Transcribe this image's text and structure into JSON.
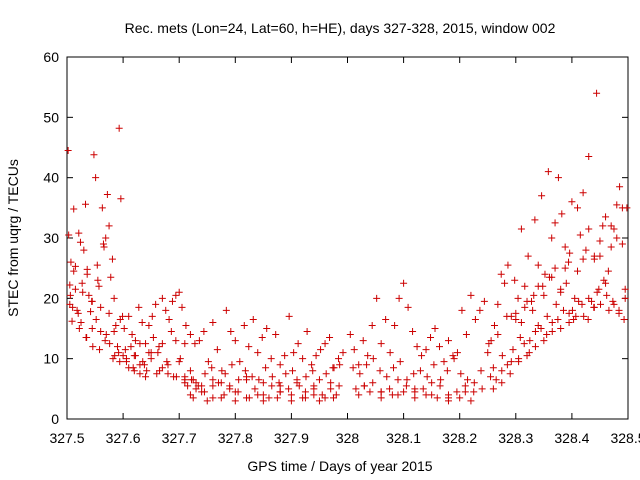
{
  "chart_data": {
    "type": "scatter",
    "title": "Rec. mets (Lon=24, Lat=60, h=HE), days 327-328, 2015, window 002",
    "xlabel": "GPS time / Days of year 2015",
    "ylabel": "STEC from uqrg / TECUs",
    "xlim": [
      327.5,
      328.5
    ],
    "ylim": [
      0,
      60
    ],
    "x_ticks": [
      327.5,
      327.6,
      327.7,
      327.8,
      327.9,
      328.0,
      328.1,
      328.2,
      328.3,
      328.4,
      328.5
    ],
    "x_tick_labels": [
      "327.5",
      "327.6",
      "327.7",
      "327.8",
      "327.9",
      "328",
      "328.1",
      "328.2",
      "328.3",
      "328.4",
      "328.5"
    ],
    "y_ticks": [
      0,
      10,
      20,
      30,
      40,
      50,
      60
    ],
    "y_tick_labels": [
      "0",
      "10",
      "20",
      "30",
      "40",
      "50",
      "60"
    ],
    "grid": false,
    "marker": "+",
    "color": "#cc0000",
    "series": [
      {
        "x": [
          327.502,
          327.503,
          327.505,
          327.507,
          327.509,
          327.512,
          327.515,
          327.518,
          327.521,
          327.524,
          327.527,
          327.53,
          327.533,
          327.536,
          327.539,
          327.542,
          327.545,
          327.548,
          327.551,
          327.554,
          327.557,
          327.56,
          327.563,
          327.566,
          327.569,
          327.572,
          327.575,
          327.578,
          327.581,
          327.584,
          327.587,
          327.59,
          327.593,
          327.596,
          327.599,
          327.602,
          327.506,
          327.512,
          327.52,
          327.528,
          327.536,
          327.544,
          327.552,
          327.56,
          327.568,
          327.576,
          327.584,
          327.592,
          327.6,
          327.51,
          327.522,
          327.534,
          327.546,
          327.558,
          327.57,
          327.582,
          327.594,
          327.606,
          327.618,
          327.63,
          327.642,
          327.505,
          327.515,
          327.525,
          327.535,
          327.545,
          327.555,
          327.565,
          327.575,
          327.585,
          327.595,
          327.604,
          327.61,
          327.616,
          327.622,
          327.628,
          327.634,
          327.64,
          327.646,
          327.652,
          327.658,
          327.664,
          327.67,
          327.676,
          327.682,
          327.688,
          327.694,
          327.7,
          327.606,
          327.614,
          327.622,
          327.63,
          327.638,
          327.646,
          327.654,
          327.662,
          327.67,
          327.678,
          327.686,
          327.694,
          327.702,
          327.71,
          327.61,
          327.62,
          327.63,
          327.64,
          327.65,
          327.66,
          327.67,
          327.68,
          327.69,
          327.7,
          327.71,
          327.72,
          327.62,
          327.635,
          327.65,
          327.665,
          327.68,
          327.695,
          327.71,
          327.725,
          327.74,
          327.705,
          327.712,
          327.72,
          327.728,
          327.736,
          327.744,
          327.752,
          327.76,
          327.768,
          327.776,
          327.784,
          327.792,
          327.8,
          327.808,
          327.816,
          327.824,
          327.832,
          327.84,
          327.848,
          327.856,
          327.864,
          327.872,
          327.88,
          327.888,
          327.896,
          327.904,
          327.912,
          327.92,
          327.928,
          327.936,
          327.944,
          327.952,
          327.96,
          327.968,
          327.976,
          327.984,
          327.992,
          327.71,
          327.722,
          327.734,
          327.746,
          327.758,
          327.77,
          327.782,
          327.794,
          327.806,
          327.818,
          327.83,
          327.842,
          327.854,
          327.866,
          327.878,
          327.89,
          327.902,
          327.914,
          327.926,
          327.938,
          327.95,
          327.962,
          327.974,
          327.986,
          327.715,
          327.73,
          327.745,
          327.76,
          327.775,
          327.79,
          327.805,
          327.82,
          327.835,
          327.85,
          327.865,
          327.88,
          327.895,
          327.91,
          327.925,
          327.94,
          327.955,
          327.97,
          327.985,
          327.72,
          327.74,
          327.76,
          327.78,
          327.8,
          327.82,
          327.84,
          327.86,
          327.88,
          327.9,
          327.92,
          327.94,
          327.96,
          327.98,
          327.725,
          327.75,
          327.775,
          327.8,
          327.825,
          327.85,
          327.875,
          327.9,
          327.925,
          327.95,
          327.975,
          327.73,
          327.76,
          327.79,
          327.82,
          327.85,
          327.88,
          327.91,
          327.94,
          327.97,
          328.005,
          328.012,
          328.02,
          328.028,
          328.036,
          328.044,
          328.052,
          328.06,
          328.068,
          328.076,
          328.084,
          328.092,
          328.1,
          328.108,
          328.116,
          328.124,
          328.132,
          328.14,
          328.148,
          328.156,
          328.164,
          328.172,
          328.18,
          328.188,
          328.196,
          328.204,
          328.212,
          328.22,
          328.228,
          328.236,
          328.244,
          328.01,
          328.022,
          328.034,
          328.046,
          328.058,
          328.07,
          328.082,
          328.094,
          328.106,
          328.118,
          328.13,
          328.142,
          328.154,
          328.166,
          328.178,
          328.19,
          328.202,
          328.214,
          328.226,
          328.238,
          328.015,
          328.03,
          328.045,
          328.06,
          328.075,
          328.09,
          328.105,
          328.12,
          328.135,
          328.15,
          328.165,
          328.18,
          328.195,
          328.21,
          328.225,
          328.24,
          328.02,
          328.04,
          328.06,
          328.08,
          328.1,
          328.12,
          328.14,
          328.16,
          328.18,
          328.2,
          328.22,
          328.03,
          328.06,
          328.09,
          328.12,
          328.15,
          328.18,
          328.21,
          328.25,
          328.256,
          328.262,
          328.268,
          328.274,
          328.28,
          328.286,
          328.292,
          328.298,
          328.304,
          328.31,
          328.316,
          328.322,
          328.328,
          328.334,
          328.34,
          328.346,
          328.352,
          328.358,
          328.364,
          328.37,
          328.376,
          328.382,
          328.388,
          328.394,
          328.4,
          328.252,
          328.26,
          328.268,
          328.276,
          328.284,
          328.292,
          328.3,
          328.308,
          328.316,
          328.324,
          328.332,
          328.34,
          328.348,
          328.356,
          328.364,
          328.372,
          328.38,
          328.388,
          328.396,
          328.255,
          328.265,
          328.275,
          328.285,
          328.295,
          328.305,
          328.315,
          328.325,
          328.335,
          328.345,
          328.355,
          328.365,
          328.375,
          328.385,
          328.395,
          328.26,
          328.275,
          328.29,
          328.305,
          328.32,
          328.335,
          328.35,
          328.365,
          328.38,
          328.395,
          328.401,
          328.405,
          328.41,
          328.415,
          328.42,
          328.425,
          328.43,
          328.435,
          328.44,
          328.445,
          328.45,
          328.455,
          328.46,
          328.465,
          328.47,
          328.475,
          328.48,
          328.485,
          328.49,
          328.495,
          328.498,
          328.403,
          328.412,
          328.421,
          328.43,
          328.439,
          328.448,
          328.457,
          328.466,
          328.475,
          328.484,
          328.493,
          328.407,
          328.418,
          328.429,
          328.44,
          328.451,
          328.462,
          328.473,
          328.484,
          328.495,
          328.3,
          328.31,
          328.32,
          328.33,
          328.34,
          328.35,
          328.36,
          328.37,
          328.38,
          328.39,
          328.41,
          328.42,
          328.43,
          328.44,
          328.45,
          328.46,
          328.47,
          328.48,
          328.49,
          328.444
        ],
        "y": [
          44.5,
          30.5,
          22.2,
          26.0,
          16.2,
          34.8,
          25.3,
          18.0,
          30.8,
          29.3,
          22.5,
          28.0,
          35.6,
          24.8,
          20.5,
          17.8,
          15.0,
          43.8,
          40.0,
          25.5,
          22.0,
          14.5,
          35.0,
          28.5,
          30.0,
          37.2,
          32.0,
          23.5,
          26.5,
          20.0,
          15.5,
          12.0,
          48.2,
          36.5,
          17.0,
          15.0,
          20.5,
          24.5,
          17.5,
          21.0,
          24.0,
          19.5,
          16.5,
          18.5,
          13.0,
          12.5,
          14.5,
          11.0,
          10.5,
          18.5,
          15.0,
          13.5,
          12.0,
          11.5,
          14.0,
          10.0,
          9.5,
          10.0,
          8.5,
          9.0,
          8.0,
          19.0,
          21.5,
          16.0,
          13.5,
          19.5,
          23.0,
          29.0,
          17.5,
          10.5,
          16.5,
          11.5,
          17.0,
          14.0,
          13.0,
          18.5,
          16.0,
          12.5,
          15.5,
          17.0,
          19.0,
          12.0,
          20.0,
          18.0,
          16.5,
          19.5,
          20.5,
          21.0,
          9.5,
          12.0,
          10.5,
          12.5,
          9.0,
          11.0,
          13.5,
          11.0,
          12.5,
          9.5,
          14.5,
          13.0,
          10.0,
          12.5,
          8.5,
          8.0,
          7.5,
          7.0,
          10.0,
          7.5,
          8.5,
          9.0,
          7.0,
          9.5,
          6.5,
          8.0,
          10.5,
          9.5,
          11.0,
          8.0,
          7.5,
          7.0,
          6.0,
          6.5,
          5.5,
          18.5,
          15.5,
          14.0,
          12.5,
          13.0,
          14.5,
          9.5,
          16.0,
          11.5,
          8.0,
          18.0,
          14.5,
          13.0,
          9.5,
          15.5,
          12.0,
          16.5,
          11.0,
          13.5,
          15.0,
          10.0,
          14.0,
          9.0,
          10.5,
          17.0,
          11.0,
          12.5,
          10.0,
          14.5,
          9.0,
          10.5,
          11.5,
          12.5,
          13.5,
          8.5,
          10.0,
          11.0,
          7.0,
          6.5,
          5.5,
          7.5,
          8.5,
          6.0,
          7.5,
          9.0,
          6.5,
          8.0,
          7.0,
          6.5,
          8.5,
          7.0,
          6.0,
          7.5,
          8.0,
          5.5,
          7.0,
          8.0,
          6.5,
          7.5,
          8.5,
          9.0,
          5.5,
          5.0,
          4.5,
          5.5,
          6.0,
          5.0,
          4.5,
          6.5,
          5.0,
          4.0,
          5.5,
          4.5,
          5.0,
          6.0,
          4.5,
          5.5,
          4.0,
          5.0,
          5.5,
          4.0,
          4.5,
          3.5,
          4.0,
          4.5,
          3.5,
          4.0,
          3.5,
          4.5,
          4.0,
          3.5,
          4.0,
          3.5,
          4.0,
          3.5,
          3.0,
          3.5,
          3.0,
          3.5,
          3.0,
          3.5,
          3.0,
          3.5,
          3.0,
          3.5,
          6.0,
          6.5,
          5.5,
          7.0,
          6.0,
          5.5,
          6.5,
          5.0,
          6.0,
          14.0,
          11.5,
          9.0,
          13.0,
          10.5,
          15.5,
          20.0,
          12.5,
          16.5,
          11.0,
          15.5,
          20.0,
          22.5,
          18.5,
          14.5,
          12.0,
          10.5,
          11.5,
          13.5,
          15.0,
          12.0,
          9.5,
          13.0,
          10.5,
          11.0,
          18.0,
          14.0,
          20.5,
          16.5,
          18.0,
          19.5,
          8.5,
          7.5,
          9.0,
          10.0,
          8.0,
          7.0,
          8.5,
          9.5,
          6.5,
          7.5,
          8.0,
          7.0,
          9.0,
          6.5,
          8.0,
          10.0,
          7.5,
          6.5,
          6.0,
          8.0,
          5.0,
          5.5,
          6.0,
          4.5,
          5.0,
          6.5,
          5.5,
          4.5,
          5.0,
          6.0,
          5.5,
          4.0,
          4.5,
          5.5,
          4.5,
          5.0,
          4.0,
          4.5,
          3.5,
          4.0,
          4.5,
          3.5,
          4.0,
          3.5,
          3.0,
          3.5,
          3.0,
          5.5,
          4.5,
          4.0,
          5.0,
          4.0,
          3.5,
          4.5,
          11.0,
          13.0,
          15.5,
          19.0,
          24.0,
          22.5,
          25.5,
          17.0,
          23.0,
          20.0,
          31.5,
          22.0,
          27.0,
          19.5,
          33.0,
          25.5,
          37.0,
          24.0,
          41.0,
          30.0,
          32.5,
          40.0,
          34.0,
          28.5,
          26.0,
          36.0,
          12.5,
          8.5,
          14.0,
          10.5,
          17.0,
          9.5,
          16.5,
          13.5,
          18.5,
          11.0,
          20.5,
          15.5,
          22.0,
          17.0,
          23.5,
          19.0,
          21.5,
          25.0,
          27.5,
          7.0,
          6.5,
          8.0,
          9.0,
          11.5,
          10.0,
          12.5,
          13.0,
          14.5,
          15.0,
          14.0,
          16.0,
          16.5,
          18.0,
          17.5,
          5.0,
          6.0,
          7.5,
          9.5,
          10.5,
          12.0,
          13.0,
          14.5,
          15.0,
          16.0,
          18.0,
          20.0,
          35.0,
          30.5,
          37.5,
          28.0,
          31.5,
          19.5,
          26.5,
          21.0,
          27.0,
          32.0,
          22.5,
          24.5,
          28.5,
          31.5,
          35.5,
          38.5,
          29.0,
          21.5,
          35.0,
          16.5,
          19.5,
          17.0,
          20.0,
          18.5,
          21.5,
          23.0,
          18.0,
          19.0,
          17.5,
          16.5,
          17.0,
          19.0,
          16.5,
          18.5,
          19.0,
          20.5,
          19.5,
          18.0,
          20.0,
          17.5,
          16.0,
          19.5,
          18.0,
          22.0,
          20.5,
          23.5,
          25.0,
          21.0,
          22.5,
          24.5,
          26.5,
          43.5,
          27.0,
          29.5,
          33.5,
          32.0,
          30.0,
          35.0,
          54.0
        ]
      }
    ]
  }
}
